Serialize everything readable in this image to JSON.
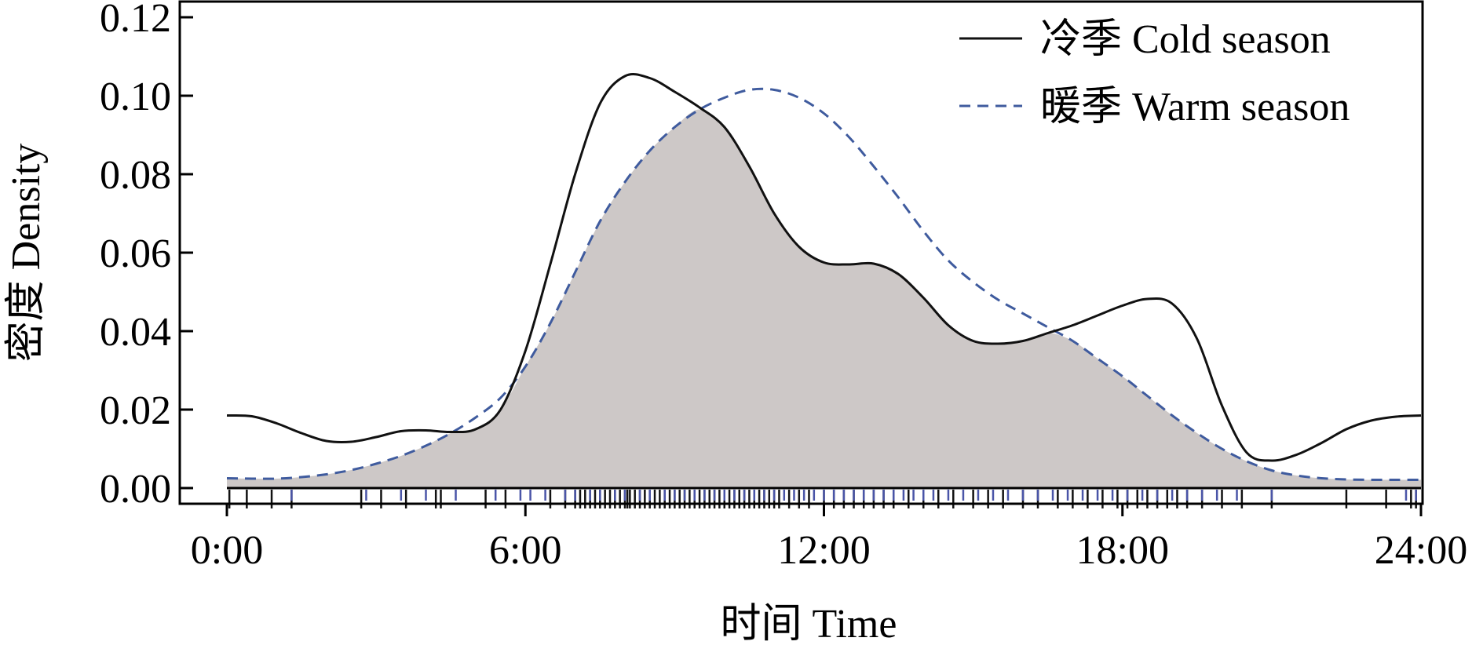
{
  "chart_data": {
    "type": "line",
    "xlabel": "时间 Time",
    "ylabel": "密度 Density",
    "xlim": [
      0,
      24
    ],
    "ylim": [
      -0.004,
      0.124
    ],
    "x_ticks": [
      {
        "value": 0,
        "label": "0:00"
      },
      {
        "value": 6,
        "label": "6:00"
      },
      {
        "value": 12,
        "label": "12:00"
      },
      {
        "value": 18,
        "label": "18:00"
      },
      {
        "value": 24,
        "label": "24:00"
      }
    ],
    "y_ticks": [
      {
        "value": 0.0,
        "label": "0.00"
      },
      {
        "value": 0.02,
        "label": "0.02"
      },
      {
        "value": 0.04,
        "label": "0.04"
      },
      {
        "value": 0.06,
        "label": "0.06"
      },
      {
        "value": 0.08,
        "label": "0.08"
      },
      {
        "value": 0.1,
        "label": "0.10"
      },
      {
        "value": 0.12,
        "label": "0.12"
      }
    ],
    "overlap_fill_color": "#cdc8c7",
    "legend_position": "top-right",
    "series": [
      {
        "name": "冷季 Cold season",
        "style": "solid",
        "color": "#111111",
        "x": [
          0,
          0.5,
          1,
          1.5,
          2,
          2.5,
          3,
          3.5,
          4,
          4.5,
          5,
          5.5,
          6,
          6.5,
          7,
          7.5,
          8,
          8.5,
          9,
          9.5,
          10,
          10.5,
          11,
          11.5,
          12,
          12.5,
          13,
          13.5,
          14,
          14.5,
          15,
          15.5,
          16,
          16.5,
          17,
          17.5,
          18,
          18.5,
          19,
          19.5,
          20,
          20.5,
          21,
          21.5,
          22,
          22.5,
          23,
          23.5,
          24
        ],
        "y": [
          0.0185,
          0.0183,
          0.0165,
          0.014,
          0.012,
          0.0118,
          0.013,
          0.0145,
          0.0147,
          0.0143,
          0.015,
          0.02,
          0.035,
          0.057,
          0.08,
          0.098,
          0.105,
          0.1045,
          0.101,
          0.097,
          0.092,
          0.082,
          0.07,
          0.0615,
          0.0575,
          0.057,
          0.0572,
          0.0545,
          0.0485,
          0.0415,
          0.0375,
          0.0368,
          0.0375,
          0.0395,
          0.0415,
          0.044,
          0.0465,
          0.0482,
          0.047,
          0.038,
          0.021,
          0.009,
          0.007,
          0.0085,
          0.0115,
          0.015,
          0.0172,
          0.0182,
          0.0185
        ]
      },
      {
        "name": "暖季 Warm season",
        "style": "dashed",
        "color": "#3f5b9e",
        "x": [
          0,
          0.5,
          1,
          1.5,
          2,
          2.5,
          3,
          3.5,
          4,
          4.5,
          5,
          5.5,
          6,
          6.5,
          7,
          7.5,
          8,
          8.5,
          9,
          9.5,
          10,
          10.5,
          11,
          11.5,
          12,
          12.5,
          13,
          13.5,
          14,
          14.5,
          15,
          15.5,
          16,
          16.5,
          17,
          17.5,
          18,
          18.5,
          19,
          19.5,
          20,
          20.5,
          21,
          21.5,
          22,
          22.5,
          23,
          23.5,
          24
        ],
        "y": [
          0.0025,
          0.0024,
          0.0024,
          0.0028,
          0.0035,
          0.0046,
          0.0062,
          0.0082,
          0.0108,
          0.014,
          0.018,
          0.023,
          0.031,
          0.042,
          0.055,
          0.068,
          0.078,
          0.086,
          0.092,
          0.0965,
          0.0995,
          0.1015,
          0.1015,
          0.0995,
          0.0955,
          0.0895,
          0.082,
          0.074,
          0.0655,
          0.058,
          0.0525,
          0.048,
          0.0445,
          0.041,
          0.0375,
          0.033,
          0.0285,
          0.0235,
          0.0185,
          0.014,
          0.01,
          0.0068,
          0.0045,
          0.0032,
          0.0025,
          0.0022,
          0.0021,
          0.0021,
          0.0021
        ]
      }
    ],
    "rug": {
      "cold_color": "#111111",
      "warm_color": "#4a55a8",
      "cold": [
        0.05,
        0.4,
        0.9,
        1.3,
        2.7,
        3.1,
        3.6,
        4.2,
        4.3,
        5.2,
        5.6,
        6.5,
        6.8,
        7.0,
        7.1,
        7.2,
        7.3,
        7.4,
        7.5,
        7.6,
        7.7,
        7.8,
        7.9,
        8.0,
        8.05,
        8.1,
        8.2,
        8.3,
        8.4,
        8.5,
        8.6,
        8.7,
        8.8,
        8.9,
        9.0,
        9.1,
        9.2,
        9.3,
        9.4,
        9.5,
        9.6,
        9.7,
        9.8,
        9.9,
        10.0,
        10.1,
        10.2,
        10.3,
        10.4,
        10.5,
        10.6,
        10.7,
        10.8,
        10.9,
        11.0,
        11.1,
        11.3,
        11.5,
        11.7,
        12.0,
        12.2,
        12.4,
        12.6,
        12.8,
        13.0,
        13.2,
        13.4,
        13.7,
        14.0,
        14.3,
        14.6,
        15.0,
        15.3,
        15.6,
        16.0,
        16.3,
        16.7,
        17.0,
        17.3,
        17.6,
        17.9,
        18.1,
        18.3,
        18.5,
        18.7,
        18.9,
        19.1,
        19.3,
        19.6,
        20.0,
        20.4,
        21.0,
        22.5,
        23.3,
        23.8,
        23.9
      ],
      "warm": [
        1.3,
        2.8,
        3.5,
        4.0,
        4.6,
        5.4,
        5.9,
        6.1,
        6.4,
        6.8,
        7.0,
        7.3,
        7.5,
        7.8,
        8.0,
        8.3,
        8.5,
        8.8,
        9.0,
        9.2,
        9.4,
        9.6,
        9.8,
        10.0,
        10.2,
        10.4,
        10.6,
        10.8,
        11.0,
        11.2,
        11.4,
        11.6,
        11.8,
        12.0,
        12.2,
        12.4,
        12.6,
        12.8,
        13.0,
        13.2,
        13.4,
        13.6,
        13.8,
        14.0,
        14.2,
        14.5,
        14.8,
        15.1,
        15.4,
        15.7,
        16.0,
        16.3,
        16.6,
        16.9,
        17.2,
        17.5,
        17.8,
        18.1,
        18.4,
        18.7,
        19.0,
        19.3,
        19.6,
        19.9,
        20.3,
        21.0,
        23.7,
        23.9
      ]
    }
  }
}
